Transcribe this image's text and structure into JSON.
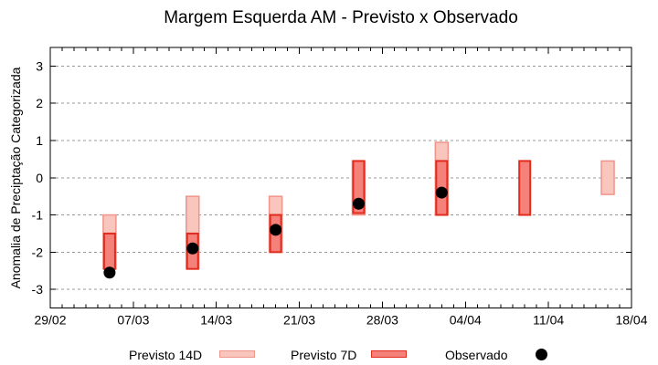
{
  "chart_data": {
    "type": "range-bar",
    "title": "Margem Esquerda AM - Previsto x Observado",
    "ylabel": "Anomalia de Preciptação Categorizada",
    "ylim": [
      -3.5,
      3.5
    ],
    "yticks": [
      3,
      2,
      1,
      0,
      -1,
      -2,
      -3
    ],
    "grid": {
      "horizontal_dashed": true,
      "vertical": false
    },
    "legend_position": "bottom",
    "x_axis": {
      "total_days": 49,
      "minor_tick_every_days": 1,
      "major_tick_every_days": 7
    },
    "xticks": [
      {
        "label": "29/02",
        "day": 0
      },
      {
        "label": "07/03",
        "day": 7
      },
      {
        "label": "14/03",
        "day": 14
      },
      {
        "label": "21/03",
        "day": 21
      },
      {
        "label": "28/03",
        "day": 28
      },
      {
        "label": "04/04",
        "day": 35
      },
      {
        "label": "11/04",
        "day": 42
      },
      {
        "label": "18/04",
        "day": 49
      }
    ],
    "series": [
      {
        "name": "Previsto 14D",
        "role": "p14",
        "type": "range",
        "points": [
          {
            "date": "05/03",
            "day": 5,
            "high": -1.0,
            "low": -2.45
          },
          {
            "date": "12/03",
            "day": 12,
            "high": -0.5,
            "low": -2.45
          },
          {
            "date": "19/03",
            "day": 19,
            "high": -0.5,
            "low": -2.0
          },
          {
            "date": "26/03",
            "day": 26,
            "high": 0.45,
            "low": -1.0
          },
          {
            "date": "02/04",
            "day": 33,
            "high": 0.95,
            "low": -1.0
          },
          {
            "date": "16/04",
            "day": 47,
            "high": 0.45,
            "low": -0.45
          }
        ]
      },
      {
        "name": "Previsto 7D",
        "role": "p7",
        "type": "range",
        "points": [
          {
            "date": "05/03",
            "day": 5,
            "high": -1.5,
            "low": -2.45
          },
          {
            "date": "12/03",
            "day": 12,
            "high": -1.5,
            "low": -2.45
          },
          {
            "date": "19/03",
            "day": 19,
            "high": -1.0,
            "low": -2.0
          },
          {
            "date": "26/03",
            "day": 26,
            "high": 0.45,
            "low": -0.95
          },
          {
            "date": "02/04",
            "day": 33,
            "high": 0.45,
            "low": -1.0
          },
          {
            "date": "09/04",
            "day": 40,
            "high": 0.45,
            "low": -1.0
          }
        ]
      },
      {
        "name": "Observado",
        "role": "obs",
        "type": "scatter",
        "points": [
          {
            "date": "05/03",
            "day": 5,
            "value": -2.55
          },
          {
            "date": "12/03",
            "day": 12,
            "value": -1.9
          },
          {
            "date": "19/03",
            "day": 19,
            "value": -1.4
          },
          {
            "date": "26/03",
            "day": 26,
            "value": -0.7
          },
          {
            "date": "02/04",
            "day": 33,
            "value": -0.4
          }
        ]
      }
    ]
  },
  "legend": {
    "items": [
      {
        "label": "Previsto 14D",
        "key": "box-light"
      },
      {
        "label": "Previsto 7D",
        "key": "box-dark"
      },
      {
        "label": "Observado",
        "key": "dot"
      }
    ]
  },
  "colors": {
    "previsto_14d_fill": "#f9c6be",
    "previsto_14d_stroke": "#f0948a",
    "previsto_7d_fill": "#f5827a",
    "previsto_7d_stroke": "#e32b1d",
    "observado": "#000000",
    "grid": "#999999",
    "axis": "#000000",
    "background": "#ffffff"
  }
}
